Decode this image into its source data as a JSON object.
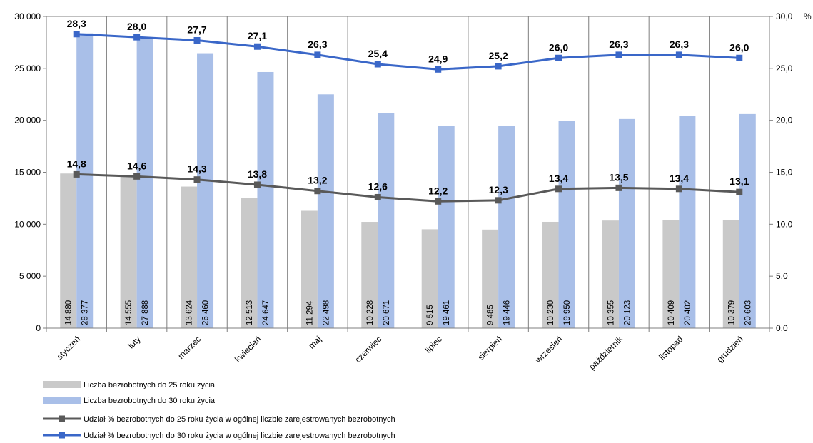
{
  "chart_data": {
    "type": "bar",
    "categories": [
      "styczeń",
      "luty",
      "marzec",
      "kwiecień",
      "maj",
      "czerwiec",
      "lipiec",
      "sierpień",
      "wrzesień",
      "październik",
      "listopad",
      "grudzień"
    ],
    "series": [
      {
        "name": "Liczba bezrobotnych do 25 roku życia",
        "type": "bar",
        "axis": "left",
        "color": "#c9c9c9",
        "values": [
          14880,
          14555,
          13624,
          12513,
          11294,
          10228,
          9515,
          9485,
          10230,
          10355,
          10409,
          10379
        ],
        "labels": [
          "14 880",
          "14 555",
          "13 624",
          "12 513",
          "11 294",
          "10 228",
          "9 515",
          "9 485",
          "10 230",
          "10 355",
          "10 409",
          "10 379"
        ]
      },
      {
        "name": "Liczba bezrobotnych do 30 roku życia",
        "type": "bar",
        "axis": "left",
        "color": "#a9bfe8",
        "values": [
          28377,
          27888,
          26460,
          24647,
          22498,
          20671,
          19461,
          19446,
          19950,
          20123,
          20402,
          20603
        ],
        "labels": [
          "28 377",
          "27 888",
          "26 460",
          "24 647",
          "22 498",
          "20 671",
          "19 461",
          "19 446",
          "19 950",
          "20 123",
          "20 402",
          "20 603"
        ]
      },
      {
        "name": "Udział % bezrobotnych do 25 roku życia w ogólnej liczbie zarejestrowanych bezrobotnych",
        "type": "line",
        "axis": "right",
        "color": "#595959",
        "values": [
          14.8,
          14.6,
          14.3,
          13.8,
          13.2,
          12.6,
          12.2,
          12.3,
          13.4,
          13.5,
          13.4,
          13.1
        ],
        "labels": [
          "14,8",
          "14,6",
          "14,3",
          "13,8",
          "13,2",
          "12,6",
          "12,2",
          "12,3",
          "13,4",
          "13,5",
          "13,4",
          "13,1"
        ]
      },
      {
        "name": "Udział % bezrobotnych do 30 roku życia w ogólnej liczbie zarejestrowanych bezrobotnych",
        "type": "line",
        "axis": "right",
        "color": "#3a67c8",
        "values": [
          28.3,
          28.0,
          27.7,
          27.1,
          26.3,
          25.4,
          24.9,
          25.2,
          26.0,
          26.3,
          26.3,
          26.0
        ],
        "labels": [
          "28,3",
          "28,0",
          "27,7",
          "27,1",
          "26,3",
          "25,4",
          "24,9",
          "25,2",
          "26,0",
          "26,3",
          "26,3",
          "26,0"
        ]
      }
    ],
    "y_left": {
      "min": 0,
      "max": 30000,
      "ticks": [
        "0",
        "5 000",
        "10 000",
        "15 000",
        "20 000",
        "25 000",
        "30 000"
      ]
    },
    "y_right": {
      "min": 0,
      "max": 30,
      "unit": "%",
      "ticks": [
        "0,0",
        "5,0",
        "10,0",
        "15,0",
        "20,0",
        "25,0",
        "30,0"
      ]
    },
    "grid": "vertical",
    "legend_position": "bottom-left"
  }
}
